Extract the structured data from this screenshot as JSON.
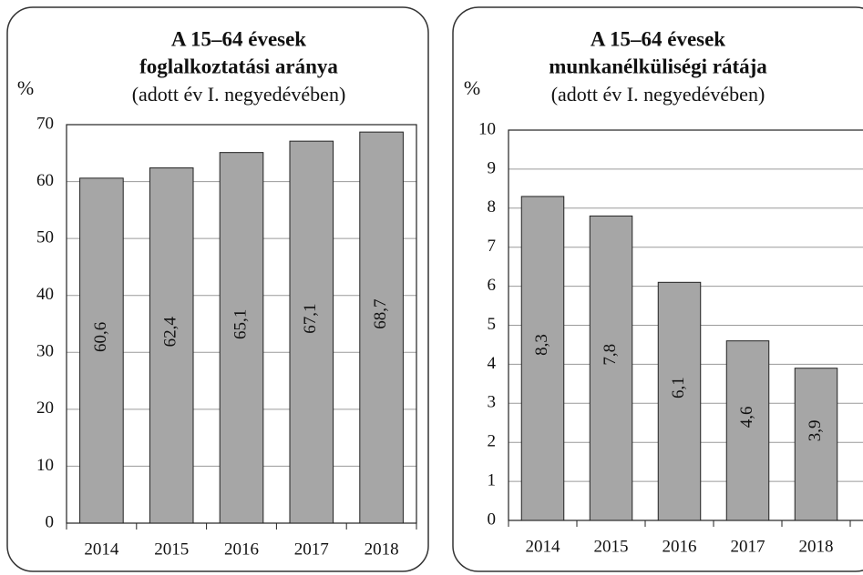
{
  "chart_data": [
    {
      "type": "bar",
      "title": [
        "A 15–64 évesek",
        "foglalkoztatási aránya"
      ],
      "subtitle": "(adott év I. negyedévében)",
      "y_label": "%",
      "categories": [
        "2014",
        "2015",
        "2016",
        "2017",
        "2018"
      ],
      "values": [
        60.6,
        62.4,
        65.1,
        67.1,
        68.7
      ],
      "value_labels": [
        "60,6",
        "62,4",
        "65,1",
        "67,1",
        "68,7"
      ],
      "color": "#a6a6a6",
      "ylim": [
        0,
        70
      ],
      "yticks": [
        0,
        10,
        20,
        30,
        40,
        50,
        60,
        70
      ],
      "grid": true
    },
    {
      "type": "bar",
      "title": [
        "A 15–64 évesek",
        "munkanélküliségi rátája"
      ],
      "subtitle": "(adott év I. negyedévében)",
      "y_label": "%",
      "categories": [
        "2014",
        "2015",
        "2016",
        "2017",
        "2018"
      ],
      "values": [
        8.3,
        7.8,
        6.1,
        4.6,
        3.9
      ],
      "value_labels": [
        "8,3",
        "7,8",
        "6,1",
        "4,6",
        "3,9"
      ],
      "color": "#a6a6a6",
      "ylim": [
        0,
        10
      ],
      "yticks": [
        0,
        1,
        2,
        3,
        4,
        5,
        6,
        7,
        8,
        9,
        10
      ],
      "grid": true
    }
  ]
}
